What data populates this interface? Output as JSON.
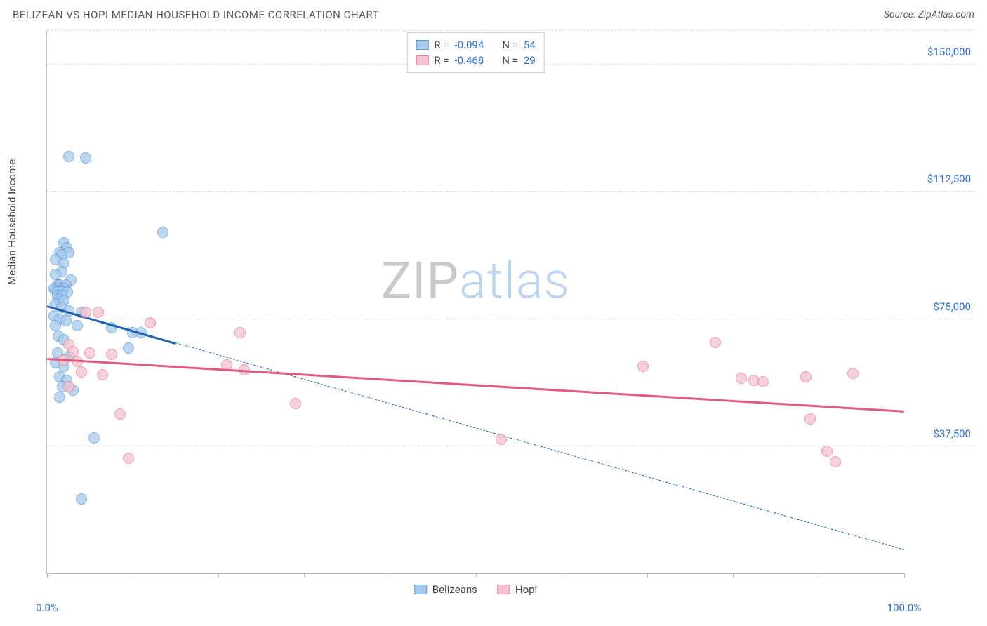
{
  "title": "BELIZEAN VS HOPI MEDIAN HOUSEHOLD INCOME CORRELATION CHART",
  "source_label": "Source:",
  "source_name": "ZipAtlas.com",
  "ylabel": "Median Household Income",
  "watermark_a": "ZIP",
  "watermark_b": "atlas",
  "chart": {
    "type": "scatter-correlation",
    "xlim": [
      0,
      100
    ],
    "ylim": [
      0,
      160000
    ],
    "x_left_label": "0.0%",
    "x_right_label": "100.0%",
    "xtick_positions": [
      0,
      10,
      20,
      30,
      40,
      50,
      60,
      70,
      80,
      90,
      100
    ],
    "ytick_labels": [
      {
        "y": 37500,
        "label": "$37,500"
      },
      {
        "y": 75000,
        "label": "$75,000"
      },
      {
        "y": 112500,
        "label": "$112,500"
      },
      {
        "y": 150000,
        "label": "$150,000"
      }
    ],
    "gridlines_y": [
      37500,
      75000,
      112500,
      150000,
      160000
    ],
    "background_color": "#ffffff",
    "grid_color": "#dddddd",
    "axis_color": "#bbbbbb",
    "series": [
      {
        "name": "Belizeans",
        "label": "Belizeans",
        "color_fill": "#a6c9ec",
        "color_stroke": "#5b9bd5",
        "trend_color": "#1f5fb0",
        "R": "-0.094",
        "N": "54",
        "trend_solid": {
          "x1": 0,
          "y1": 79000,
          "x2": 15,
          "y2": 68000
        },
        "trend_dashed": {
          "x1": 15,
          "y1": 68000,
          "x2": 100,
          "y2": 7000
        },
        "points": [
          {
            "x": 2.5,
            "y": 123000
          },
          {
            "x": 4.5,
            "y": 122500
          },
          {
            "x": 13.5,
            "y": 100500
          },
          {
            "x": 2.0,
            "y": 97500
          },
          {
            "x": 2.3,
            "y": 96000
          },
          {
            "x": 1.5,
            "y": 94500
          },
          {
            "x": 2.5,
            "y": 94500
          },
          {
            "x": 1.7,
            "y": 94000
          },
          {
            "x": 1.0,
            "y": 92500
          },
          {
            "x": 2.0,
            "y": 91500
          },
          {
            "x": 1.7,
            "y": 89000
          },
          {
            "x": 1.0,
            "y": 88200
          },
          {
            "x": 2.8,
            "y": 86500
          },
          {
            "x": 1.2,
            "y": 85000
          },
          {
            "x": 1.5,
            "y": 85000
          },
          {
            "x": 2.2,
            "y": 85000
          },
          {
            "x": 0.8,
            "y": 84000
          },
          {
            "x": 1.4,
            "y": 84000
          },
          {
            "x": 2.0,
            "y": 84000
          },
          {
            "x": 1.0,
            "y": 83500
          },
          {
            "x": 1.6,
            "y": 83500
          },
          {
            "x": 1.2,
            "y": 83000
          },
          {
            "x": 1.8,
            "y": 83000
          },
          {
            "x": 2.4,
            "y": 83000
          },
          {
            "x": 1.2,
            "y": 82000
          },
          {
            "x": 1.7,
            "y": 82000
          },
          {
            "x": 1.4,
            "y": 81000
          },
          {
            "x": 2.0,
            "y": 80500
          },
          {
            "x": 1.0,
            "y": 79500
          },
          {
            "x": 1.7,
            "y": 78500
          },
          {
            "x": 2.5,
            "y": 77500
          },
          {
            "x": 4.0,
            "y": 77000
          },
          {
            "x": 0.8,
            "y": 76000
          },
          {
            "x": 1.5,
            "y": 75000
          },
          {
            "x": 2.2,
            "y": 74500
          },
          {
            "x": 1.0,
            "y": 73000
          },
          {
            "x": 3.5,
            "y": 73000
          },
          {
            "x": 7.5,
            "y": 72500
          },
          {
            "x": 10.0,
            "y": 71000
          },
          {
            "x": 11.0,
            "y": 71000
          },
          {
            "x": 1.3,
            "y": 70000
          },
          {
            "x": 2.0,
            "y": 69000
          },
          {
            "x": 9.5,
            "y": 66500
          },
          {
            "x": 1.2,
            "y": 65000
          },
          {
            "x": 2.5,
            "y": 64000
          },
          {
            "x": 1.0,
            "y": 62000
          },
          {
            "x": 2.0,
            "y": 61000
          },
          {
            "x": 1.5,
            "y": 58000
          },
          {
            "x": 2.3,
            "y": 57000
          },
          {
            "x": 1.8,
            "y": 55000
          },
          {
            "x": 3.0,
            "y": 54000
          },
          {
            "x": 1.5,
            "y": 52000
          },
          {
            "x": 5.5,
            "y": 40000
          },
          {
            "x": 4.0,
            "y": 22000
          }
        ]
      },
      {
        "name": "Hopi",
        "label": "Hopi",
        "color_fill": "#f4c2cd",
        "color_stroke": "#e77a94",
        "trend_color": "#e15b7e",
        "R": "-0.468",
        "N": "29",
        "trend_solid": {
          "x1": 0,
          "y1": 63500,
          "x2": 100,
          "y2": 48000
        },
        "trend_dashed": null,
        "points": [
          {
            "x": 4.5,
            "y": 77000
          },
          {
            "x": 6.0,
            "y": 77000
          },
          {
            "x": 12.0,
            "y": 74000
          },
          {
            "x": 22.5,
            "y": 71000
          },
          {
            "x": 2.5,
            "y": 67500
          },
          {
            "x": 3.0,
            "y": 65500
          },
          {
            "x": 5.0,
            "y": 65000
          },
          {
            "x": 7.5,
            "y": 64500
          },
          {
            "x": 2.0,
            "y": 63000
          },
          {
            "x": 3.5,
            "y": 62500
          },
          {
            "x": 21.0,
            "y": 61500
          },
          {
            "x": 23.0,
            "y": 60000
          },
          {
            "x": 4.0,
            "y": 59500
          },
          {
            "x": 6.5,
            "y": 58500
          },
          {
            "x": 2.5,
            "y": 55000
          },
          {
            "x": 29.0,
            "y": 50000
          },
          {
            "x": 8.5,
            "y": 47000
          },
          {
            "x": 53.0,
            "y": 39500
          },
          {
            "x": 9.5,
            "y": 34000
          },
          {
            "x": 69.5,
            "y": 61000
          },
          {
            "x": 78.0,
            "y": 68000
          },
          {
            "x": 81.0,
            "y": 57500
          },
          {
            "x": 82.5,
            "y": 57000
          },
          {
            "x": 83.5,
            "y": 56500
          },
          {
            "x": 88.5,
            "y": 58000
          },
          {
            "x": 89.0,
            "y": 45500
          },
          {
            "x": 94.0,
            "y": 59000
          },
          {
            "x": 91.0,
            "y": 36000
          },
          {
            "x": 92.0,
            "y": 33000
          }
        ]
      }
    ]
  },
  "legend_top": {
    "R_label": "R =",
    "N_label": "N ="
  },
  "colors": {
    "tick_label": "#2a6fd6",
    "title": "#5a5a5a"
  }
}
